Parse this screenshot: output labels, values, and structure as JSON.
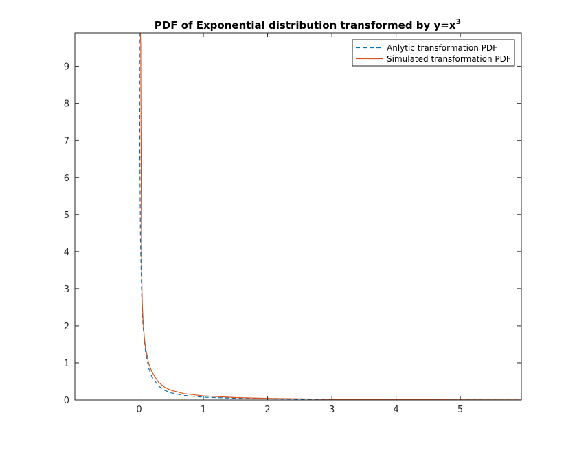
{
  "chart_data": {
    "type": "line",
    "title": "PDF of Exponential distribution transformed by y=x",
    "title_superscript": "3",
    "xlabel": "",
    "ylabel": "",
    "xlim": [
      -1,
      5.95
    ],
    "ylim": [
      0,
      9.9
    ],
    "xticks": [
      "0",
      "1",
      "2",
      "3",
      "4",
      "5"
    ],
    "yticks": [
      "0",
      "1",
      "2",
      "3",
      "4",
      "5",
      "6",
      "7",
      "8",
      "9"
    ],
    "grid": false,
    "legend_position": "top-right",
    "series": [
      {
        "name": "Anlytic transformation PDF",
        "color": "#0072BD",
        "style": "dashed",
        "x": [
          0,
          0.001,
          0.003,
          0.006,
          0.01,
          0.02,
          0.04,
          0.06,
          0.1,
          0.15,
          0.2,
          0.3,
          0.4,
          0.5,
          0.7,
          1.0,
          1.5,
          2.0,
          3.0,
          4.0,
          5.0,
          5.95
        ],
        "y": [
          9.9,
          9.9,
          9.9,
          9.9,
          7.0,
          4.4,
          2.8,
          2.0,
          1.3,
          0.85,
          0.62,
          0.38,
          0.26,
          0.19,
          0.12,
          0.075,
          0.045,
          0.03,
          0.012,
          0.005,
          0.002,
          0.001
        ]
      },
      {
        "name": "Simulated transformation PDF",
        "color": "#D95319",
        "style": "solid",
        "x": [
          0.02,
          0.025,
          0.03,
          0.035,
          0.04,
          0.045,
          0.05,
          0.06,
          0.08,
          0.1,
          0.15,
          0.2,
          0.3,
          0.4,
          0.5,
          0.7,
          1.0,
          1.5,
          2.0,
          3.0,
          4.0,
          5.0,
          5.95
        ],
        "y": [
          9.9,
          9.6,
          7.0,
          5.0,
          3.6,
          2.9,
          2.6,
          2.2,
          1.7,
          1.4,
          0.98,
          0.75,
          0.48,
          0.34,
          0.26,
          0.17,
          0.11,
          0.065,
          0.042,
          0.02,
          0.01,
          0.005,
          0.002
        ]
      }
    ],
    "vertical_line": {
      "x": 0,
      "color": "#555555",
      "style": "dashed"
    }
  }
}
